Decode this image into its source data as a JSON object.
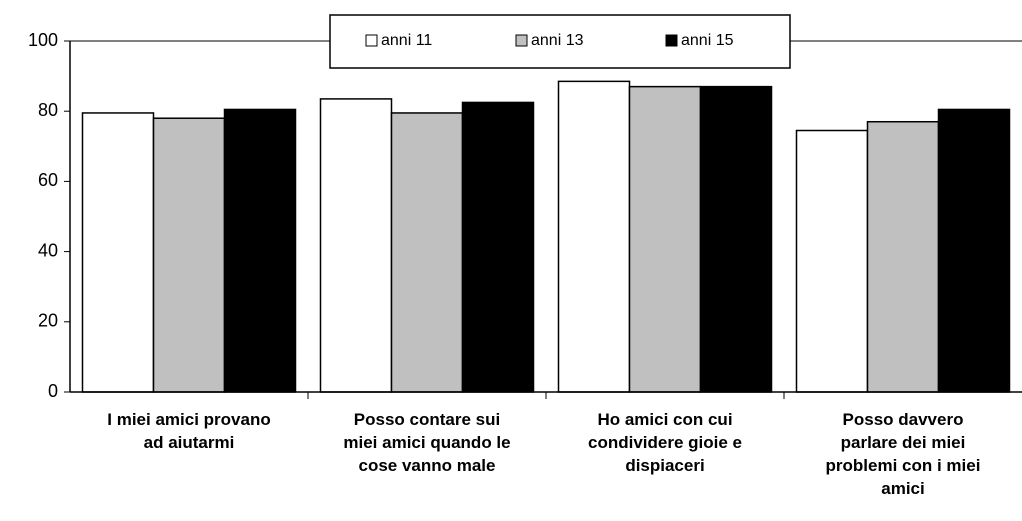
{
  "chart_data": {
    "type": "bar",
    "categories": [
      "I miei amici provano\nad aiutarmi",
      "Posso contare sui\nmiei amici quando le\ncose vanno male",
      "Ho amici con cui\ncondividere gioie e\ndispiaceri",
      "Posso davvero\nparlare dei miei\nproblemi con i miei\namici"
    ],
    "series": [
      {
        "name": "anni 11",
        "color": "#ffffff",
        "values": [
          79.5,
          83.5,
          88.5,
          74.5
        ]
      },
      {
        "name": "anni 13",
        "color": "#c0c0c0",
        "values": [
          78,
          79.5,
          87,
          77
        ]
      },
      {
        "name": "anni 15",
        "color": "#000000",
        "values": [
          80.5,
          82.5,
          87,
          80.5
        ]
      }
    ],
    "ylim": [
      0,
      100
    ],
    "yticks": [
      0,
      20,
      40,
      60,
      80,
      100
    ],
    "grid": false,
    "legend": "top"
  }
}
